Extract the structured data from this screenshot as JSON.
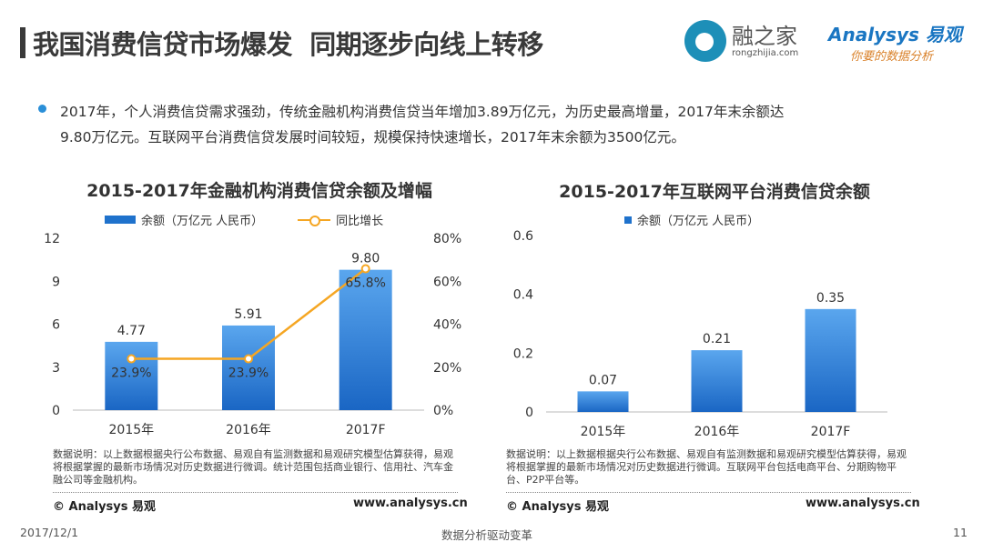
{
  "header": {
    "title": "我国消费信贷市场爆发  同期逐步向线上转移",
    "logo_rzj": {
      "name": "融之家",
      "url": "rongzhijia.com"
    },
    "logo_analysys": {
      "name": "Analysys 易观",
      "slogan": "你要的数据分析"
    }
  },
  "bullet": {
    "line1": "2017年，个人消费信贷需求强劲，传统金融机构消费信贷当年增加3.89万亿元，为历史最高增量，2017年末余额达",
    "line2": "9.80万亿元。互联网平台消费信贷发展时间较短，规模保持快速增长，2017年末余额为3500亿元。"
  },
  "colors": {
    "bar": "#1f72cc",
    "line": "#f5a623",
    "accent": "#2a8fd8"
  },
  "chart_data": [
    {
      "type": "bar+line",
      "title": "2015-2017年金融机构消费信贷余额及增幅",
      "categories": [
        "2015年",
        "2016年",
        "2017F"
      ],
      "series": [
        {
          "name": "余额（万亿元 人民币）",
          "type": "bar",
          "axis": "left",
          "values": [
            4.77,
            5.91,
            9.8
          ],
          "labels": [
            "4.77",
            "5.91",
            "9.80"
          ]
        },
        {
          "name": "同比增长",
          "type": "line",
          "axis": "right",
          "values": [
            23.9,
            23.9,
            65.8
          ],
          "labels": [
            "23.9%",
            "23.9%",
            "65.8%"
          ]
        }
      ],
      "ylim": [
        0,
        12
      ],
      "yticks": [
        "0",
        "3",
        "6",
        "9",
        "12"
      ],
      "y2lim": [
        0,
        80
      ],
      "y2ticks": [
        "0%",
        "20%",
        "40%",
        "60%",
        "80%"
      ],
      "legend": "top",
      "grid": false
    },
    {
      "type": "bar",
      "title": "2015-2017年互联网平台消费信贷余额",
      "categories": [
        "2015年",
        "2016年",
        "2017F"
      ],
      "series": [
        {
          "name": "余额（万亿元 人民币）",
          "values": [
            0.07,
            0.21,
            0.35
          ],
          "labels": [
            "0.07",
            "0.21",
            "0.35"
          ]
        }
      ],
      "ylim": [
        0,
        0.6
      ],
      "yticks": [
        "0",
        "0.2",
        "0.4",
        "0.6"
      ],
      "legend": "top",
      "grid": false
    }
  ],
  "notes": {
    "left": "数据说明：以上数据根据央行公布数据、易观自有监测数据和易观研究模型估算获得，易观将根据掌握的最新市场情况对历史数据进行微调。统计范围包括商业银行、信用社、汽车金融公司等金融机构。",
    "right": "数据说明：以上数据根据央行公布数据、易观自有监测数据和易观研究模型估算获得，易观将根据掌握的最新市场情况对历史数据进行微调。互联网平台包括电商平台、分期购物平台、P2P平台等。",
    "copyright": "© Analysys 易观",
    "website": "www.analysys.cn"
  },
  "footer": {
    "date": "2017/12/1",
    "slogan": "数据分析驱动变革",
    "page": "11"
  }
}
